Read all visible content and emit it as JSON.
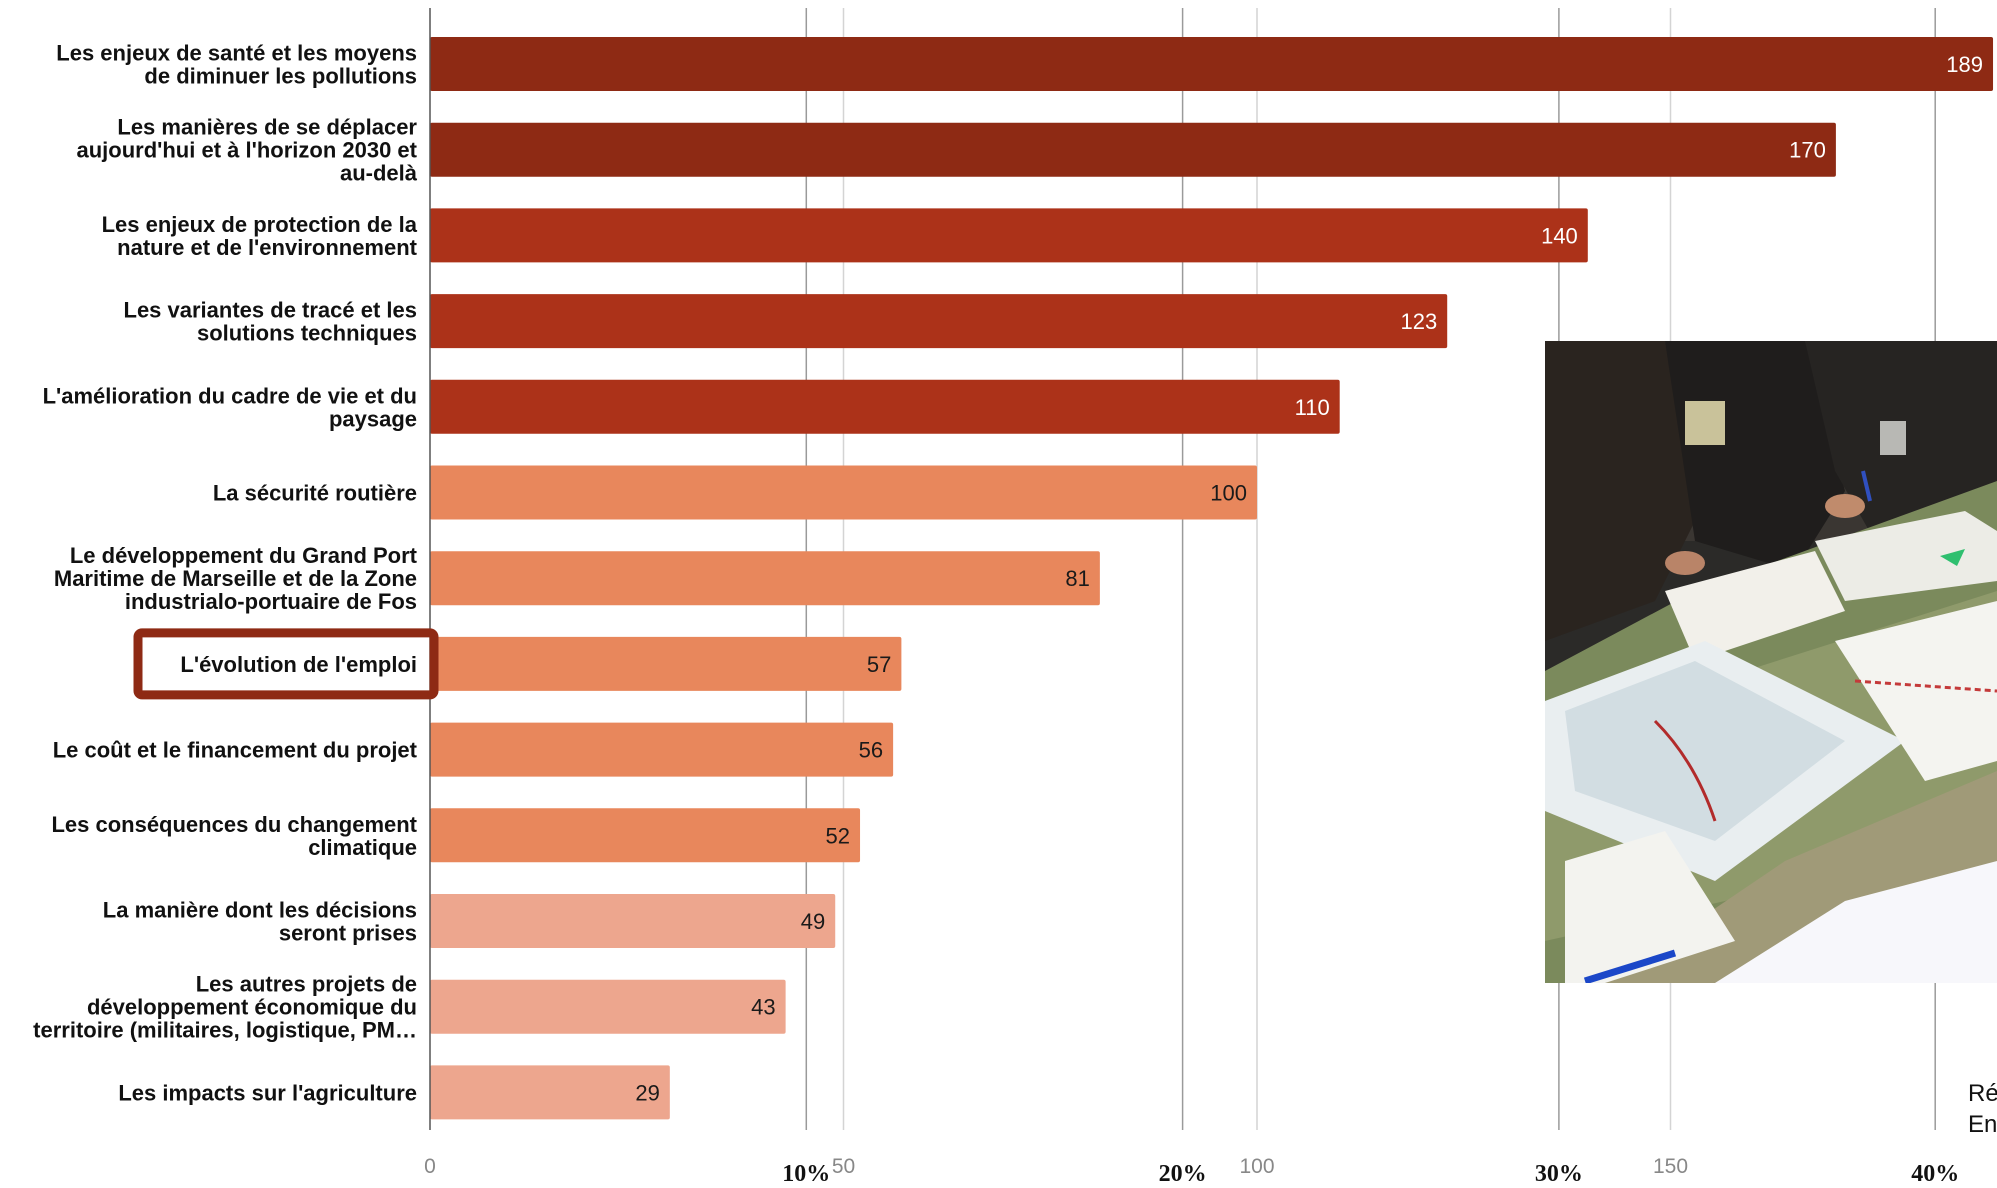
{
  "chart_data": {
    "type": "bar",
    "orientation": "horizontal",
    "categories": [
      [
        "Les enjeux de santé et les moyens",
        "de diminuer les pollutions"
      ],
      [
        "Les manières de se déplacer",
        "aujourd'hui et à l'horizon 2030 et",
        "au-delà"
      ],
      [
        "Les enjeux de protection de la",
        "nature et de l'environnement"
      ],
      [
        "Les variantes de tracé et les",
        "solutions techniques"
      ],
      [
        "L'amélioration du cadre de vie et du",
        "paysage"
      ],
      [
        "La sécurité routière"
      ],
      [
        "Le développement du Grand Port",
        "Maritime de Marseille et de la Zone",
        "industrialo-portuaire de Fos"
      ],
      [
        "L'évolution de l'emploi"
      ],
      [
        "Le coût et le financement du projet"
      ],
      [
        "Les conséquences du changement",
        "climatique"
      ],
      [
        "La manière dont les décisions",
        "seront prises"
      ],
      [
        "Les autres projets de",
        "développement économique du",
        "territoire (militaires, logistique, PM…"
      ],
      [
        "Les impacts sur l'agriculture"
      ]
    ],
    "values": [
      189,
      170,
      140,
      123,
      110,
      100,
      81,
      57,
      56,
      52,
      49,
      43,
      29
    ],
    "bar_colors": [
      "#8e2a14",
      "#8e2a14",
      "#ac3219",
      "#ac3219",
      "#ac3219",
      "#e8875c",
      "#e8875c",
      "#e8875c",
      "#e8875c",
      "#e8875c",
      "#eda68e",
      "#eda68e",
      "#eda68e"
    ],
    "value_label_colors": [
      "#ffffff",
      "#ffffff",
      "#ffffff",
      "#ffffff",
      "#ffffff",
      "#1a1a1a",
      "#1a1a1a",
      "#1a1a1a",
      "#1a1a1a",
      "#1a1a1a",
      "#1a1a1a",
      "#1a1a1a",
      "#1a1a1a"
    ],
    "x_ticks": [
      0,
      50,
      100,
      150
    ],
    "xlim": [
      0,
      190
    ],
    "percent_ticks": [
      "10%",
      "20%",
      "30%",
      "40%"
    ],
    "percent_range": [
      0,
      40
    ],
    "highlighted_category": 7,
    "highlight_color": "#8e2a14",
    "grid": true,
    "title": "",
    "xlabel": "",
    "ylabel": ""
  },
  "photo": {
    "description": "photo-of-people-annotating-maps-on-table"
  },
  "caption": {
    "lines": [
      "Ré",
      "En"
    ]
  }
}
